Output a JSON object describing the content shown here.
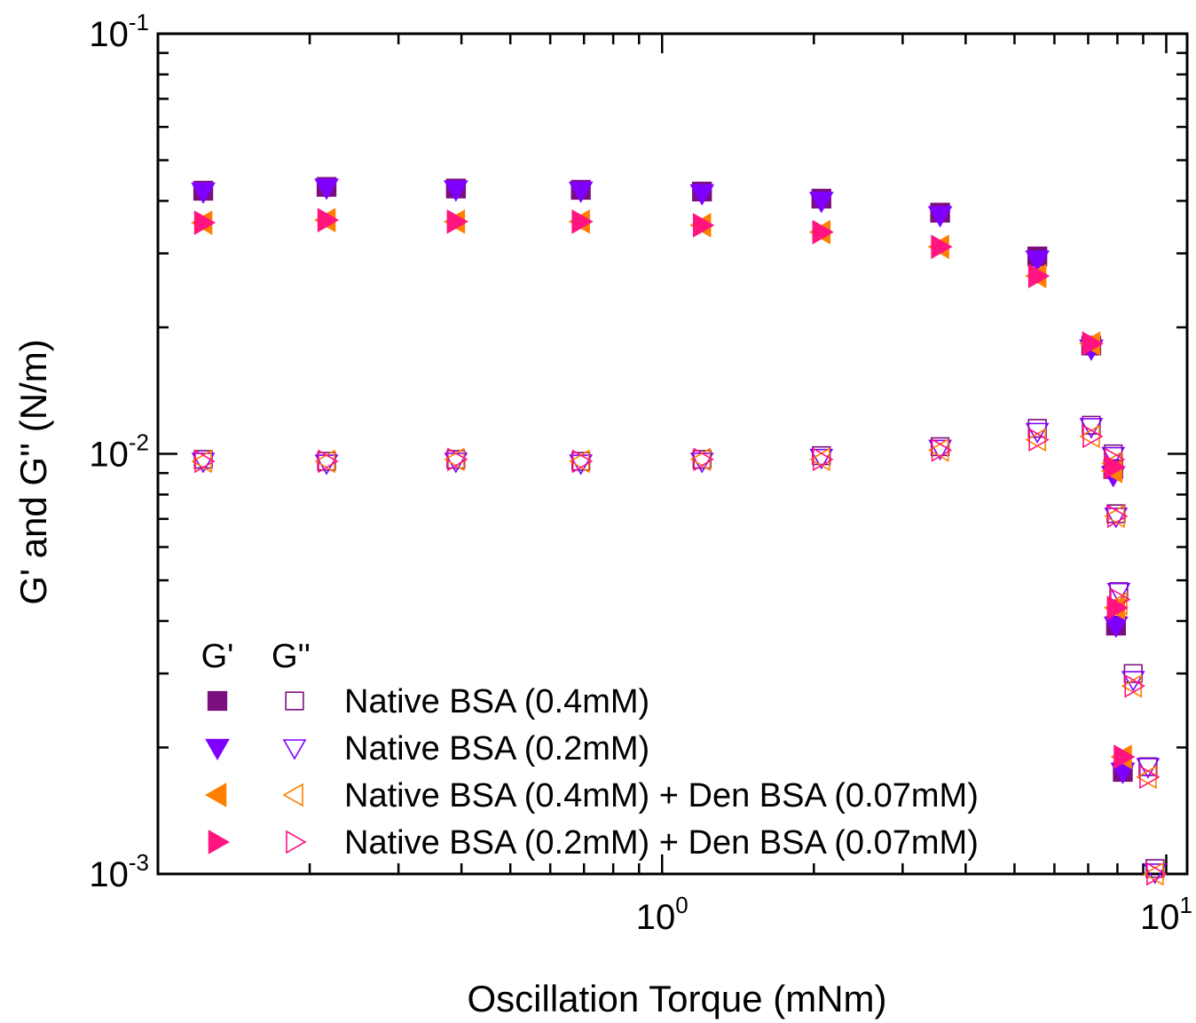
{
  "chart_data": {
    "type": "scatter",
    "xlabel": "Oscillation Torque (mNm)",
    "ylabel": "G' and G'' (N/m)",
    "xscale": "log",
    "yscale": "log",
    "xlim": [
      0.1,
      11
    ],
    "ylim": [
      0.001,
      0.1
    ],
    "x_ticks": [
      {
        "base": "10",
        "exp": "0",
        "value": 1
      },
      {
        "base": "10",
        "exp": "1",
        "value": 10
      }
    ],
    "y_ticks": [
      {
        "base": "10",
        "exp": "-1",
        "value": 0.1
      },
      {
        "base": "10",
        "exp": "-2",
        "value": 0.01
      },
      {
        "base": "10",
        "exp": "-3",
        "value": 0.001
      }
    ],
    "legend": {
      "position": "bottom-left",
      "header_gp": "G'",
      "header_gpp": "G''"
    },
    "grid": false,
    "series": [
      {
        "name": "Native BSA (0.4mM)",
        "color": "#7B0F7F",
        "marker": "square",
        "Gp": [
          [
            0.123,
            0.0423
          ],
          [
            0.216,
            0.0432
          ],
          [
            0.39,
            0.0428
          ],
          [
            0.69,
            0.0425
          ],
          [
            1.2,
            0.0421
          ],
          [
            2.07,
            0.0405
          ],
          [
            3.56,
            0.0375
          ],
          [
            5.55,
            0.0295
          ],
          [
            7.1,
            0.0181
          ],
          [
            7.85,
            0.0092
          ],
          [
            7.95,
            0.0039
          ],
          [
            8.2,
            0.00175
          ]
        ],
        "Gpp": [
          [
            0.123,
            0.0097
          ],
          [
            0.216,
            0.0096
          ],
          [
            0.39,
            0.0097
          ],
          [
            0.69,
            0.0096
          ],
          [
            1.2,
            0.0097
          ],
          [
            2.07,
            0.0099
          ],
          [
            3.56,
            0.0104
          ],
          [
            5.55,
            0.0115
          ],
          [
            7.1,
            0.0117
          ],
          [
            7.85,
            0.01
          ],
          [
            7.95,
            0.0072
          ],
          [
            8.05,
            0.0047
          ],
          [
            8.6,
            0.003
          ],
          [
            9.2,
            0.0018
          ],
          [
            9.5,
            0.00103
          ]
        ]
      },
      {
        "name": "Native BSA (0.2mM)",
        "color": "#7F00FF",
        "marker": "triangle-down",
        "Gp": [
          [
            0.123,
            0.0421
          ],
          [
            0.216,
            0.043
          ],
          [
            0.39,
            0.0426
          ],
          [
            0.69,
            0.0423
          ],
          [
            1.2,
            0.0417
          ],
          [
            2.07,
            0.04
          ],
          [
            3.56,
            0.037
          ],
          [
            5.55,
            0.029
          ],
          [
            7.1,
            0.0178
          ],
          [
            7.85,
            0.0089
          ],
          [
            7.95,
            0.0039
          ],
          [
            8.2,
            0.00175
          ]
        ],
        "Gpp": [
          [
            0.123,
            0.0096
          ],
          [
            0.216,
            0.0095
          ],
          [
            0.39,
            0.0096
          ],
          [
            0.69,
            0.0095
          ],
          [
            1.2,
            0.0096
          ],
          [
            2.07,
            0.0098
          ],
          [
            3.56,
            0.0103
          ],
          [
            5.55,
            0.0113
          ],
          [
            7.1,
            0.0116
          ],
          [
            7.85,
            0.0099
          ],
          [
            7.95,
            0.0071
          ],
          [
            8.05,
            0.0047
          ],
          [
            8.6,
            0.0029
          ],
          [
            9.2,
            0.0018
          ],
          [
            9.5,
            0.00101
          ]
        ]
      },
      {
        "name": "Native BSA (0.4mM) + Den BSA (0.07mM)",
        "color": "#FF8000",
        "marker": "triangle-left",
        "Gp": [
          [
            0.123,
            0.0355
          ],
          [
            0.216,
            0.036
          ],
          [
            0.39,
            0.0357
          ],
          [
            0.69,
            0.0357
          ],
          [
            1.2,
            0.035
          ],
          [
            2.07,
            0.0337
          ],
          [
            3.56,
            0.0311
          ],
          [
            5.55,
            0.0265
          ],
          [
            7.1,
            0.0183
          ],
          [
            7.85,
            0.0091
          ],
          [
            7.95,
            0.0043
          ],
          [
            8.2,
            0.0019
          ]
        ],
        "Gpp": [
          [
            0.123,
            0.0096
          ],
          [
            0.216,
            0.0096
          ],
          [
            0.39,
            0.0097
          ],
          [
            0.69,
            0.0096
          ],
          [
            1.2,
            0.0097
          ],
          [
            2.07,
            0.0097
          ],
          [
            3.56,
            0.0102
          ],
          [
            5.55,
            0.0108
          ],
          [
            7.1,
            0.011
          ],
          [
            7.85,
            0.0095
          ],
          [
            7.95,
            0.0071
          ],
          [
            8.05,
            0.0044
          ],
          [
            8.6,
            0.0028
          ],
          [
            9.2,
            0.0017
          ],
          [
            9.5,
            0.001
          ]
        ]
      },
      {
        "name": "Native BSA (0.2mM) + Den BSA (0.07mM)",
        "color": "#FF1480",
        "marker": "triangle-right",
        "Gp": [
          [
            0.123,
            0.0355
          ],
          [
            0.216,
            0.036
          ],
          [
            0.39,
            0.0357
          ],
          [
            0.69,
            0.0357
          ],
          [
            1.2,
            0.035
          ],
          [
            2.07,
            0.0337
          ],
          [
            3.56,
            0.0311
          ],
          [
            5.55,
            0.0265
          ],
          [
            7.1,
            0.0183
          ],
          [
            7.85,
            0.0093
          ],
          [
            7.95,
            0.0043
          ],
          [
            8.2,
            0.0019
          ]
        ],
        "Gpp": [
          [
            0.123,
            0.0096
          ],
          [
            0.216,
            0.0096
          ],
          [
            0.39,
            0.0097
          ],
          [
            0.69,
            0.0096
          ],
          [
            1.2,
            0.0097
          ],
          [
            2.07,
            0.0097
          ],
          [
            3.56,
            0.0102
          ],
          [
            5.55,
            0.0108
          ],
          [
            7.1,
            0.011
          ],
          [
            7.85,
            0.0097
          ],
          [
            7.95,
            0.0071
          ],
          [
            8.05,
            0.0045
          ],
          [
            8.6,
            0.0028
          ],
          [
            9.2,
            0.0017
          ],
          [
            9.5,
            0.001
          ]
        ]
      }
    ]
  }
}
